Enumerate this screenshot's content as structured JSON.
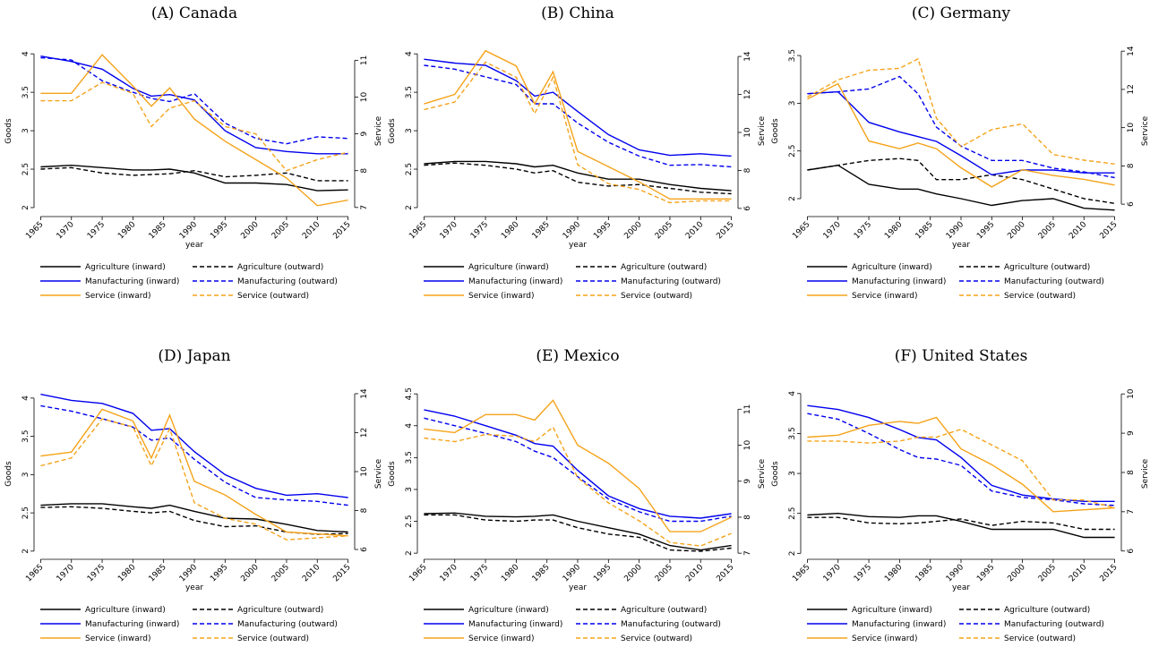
{
  "chart_data": [
    {
      "type": "line",
      "title": "(A) Canada",
      "xlabel": "year",
      "ylabel": "Goods",
      "y2label": "Service",
      "x": [
        1965,
        1970,
        1975,
        1980,
        1983,
        1986,
        1990,
        1995,
        2000,
        2005,
        2010,
        2015
      ],
      "xlim": [
        1964.5,
        2015.5
      ],
      "xticks": [
        1965,
        1970,
        1975,
        1980,
        1985,
        1990,
        1995,
        2000,
        2005,
        2010,
        2015
      ],
      "ylim": [
        1.93,
        4.06
      ],
      "yticks": [
        2,
        2.5,
        3,
        3.5,
        4
      ],
      "y2lim": [
        6.85,
        11.3
      ],
      "y2ticks": [
        7,
        8,
        9,
        10,
        11
      ],
      "series": [
        {
          "name": "Agriculture (inward)",
          "color": "#000000",
          "dash": false,
          "values": [
            2.53,
            2.55,
            2.52,
            2.49,
            2.49,
            2.5,
            2.45,
            2.32,
            2.32,
            2.3,
            2.22,
            2.23
          ]
        },
        {
          "name": "Agriculture (outward)",
          "color": "#000000",
          "dash": true,
          "values": [
            2.5,
            2.52,
            2.45,
            2.42,
            2.43,
            2.44,
            2.48,
            2.4,
            2.42,
            2.45,
            2.35,
            2.35
          ]
        },
        {
          "name": "Manufacturing (inward)",
          "color": "#0000ee",
          "dash": false,
          "values": [
            3.97,
            3.9,
            3.8,
            3.55,
            3.45,
            3.47,
            3.4,
            3.0,
            2.78,
            2.73,
            2.7,
            2.7
          ]
        },
        {
          "name": "Manufacturing (outward)",
          "color": "#0000ee",
          "dash": true,
          "values": [
            3.95,
            3.92,
            3.65,
            3.5,
            3.42,
            3.38,
            3.48,
            3.1,
            2.9,
            2.83,
            2.92,
            2.9
          ]
        },
        {
          "name": "Service (inward)",
          "color": "#f5a31a",
          "dash": false,
          "axis": "y2",
          "values": [
            10.1,
            10.1,
            11.15,
            10.3,
            9.75,
            10.25,
            9.4,
            8.8,
            8.3,
            7.8,
            7.05,
            7.2
          ]
        },
        {
          "name": "Service (outward)",
          "color": "#f5a31a",
          "dash": true,
          "axis": "y2",
          "values": [
            9.9,
            9.9,
            10.4,
            10.1,
            9.2,
            9.7,
            9.9,
            9.2,
            9.0,
            8.0,
            8.3,
            8.5
          ]
        }
      ]
    },
    {
      "type": "line",
      "title": "(B) China",
      "xlabel": "year",
      "ylabel": "Goods",
      "y2label": "Service",
      "x": [
        1965,
        1970,
        1975,
        1980,
        1983,
        1986,
        1990,
        1995,
        2000,
        2005,
        2010,
        2015
      ],
      "xlim": [
        1964.5,
        2015.5
      ],
      "xticks": [
        1965,
        1970,
        1975,
        1980,
        1985,
        1990,
        1995,
        2000,
        2005,
        2010,
        2015
      ],
      "ylim": [
        1.93,
        4.06
      ],
      "yticks": [
        2,
        2.5,
        3,
        3.5,
        4
      ],
      "y2lim": [
        5.76,
        14.38
      ],
      "y2ticks": [
        6,
        8,
        10,
        12,
        14
      ],
      "series": [
        {
          "name": "Agriculture (inward)",
          "color": "#000000",
          "dash": false,
          "values": [
            2.57,
            2.6,
            2.6,
            2.57,
            2.53,
            2.55,
            2.45,
            2.37,
            2.37,
            2.3,
            2.25,
            2.22
          ]
        },
        {
          "name": "Agriculture (outward)",
          "color": "#000000",
          "dash": true,
          "values": [
            2.55,
            2.58,
            2.55,
            2.5,
            2.45,
            2.48,
            2.33,
            2.28,
            2.3,
            2.25,
            2.2,
            2.18
          ]
        },
        {
          "name": "Manufacturing (inward)",
          "color": "#0000ee",
          "dash": false,
          "values": [
            3.93,
            3.88,
            3.85,
            3.65,
            3.45,
            3.5,
            3.25,
            2.95,
            2.75,
            2.68,
            2.7,
            2.67
          ]
        },
        {
          "name": "Manufacturing (outward)",
          "color": "#0000ee",
          "dash": true,
          "values": [
            3.85,
            3.8,
            3.7,
            3.6,
            3.35,
            3.35,
            3.1,
            2.85,
            2.67,
            2.55,
            2.56,
            2.53
          ]
        },
        {
          "name": "Service (inward)",
          "color": "#f5a31a",
          "dash": false,
          "axis": "y2",
          "values": [
            11.5,
            12,
            14.3,
            13.5,
            11.5,
            13.2,
            9,
            8.2,
            7.4,
            6.5,
            6.5,
            6.5
          ]
        },
        {
          "name": "Service (outward)",
          "color": "#f5a31a",
          "dash": true,
          "axis": "y2",
          "values": [
            11.2,
            11.6,
            13.7,
            12.9,
            11,
            12.9,
            8.3,
            7.3,
            7,
            6.3,
            6.4,
            6.4
          ]
        }
      ]
    },
    {
      "type": "line",
      "title": "(C) Germany",
      "xlabel": "year",
      "ylabel": "Goods",
      "y2label": "Service",
      "x": [
        1965,
        1970,
        1975,
        1980,
        1983,
        1986,
        1990,
        1995,
        2000,
        2005,
        2010,
        2015
      ],
      "xlim": [
        1964.5,
        2015.5
      ],
      "xticks": [
        1965,
        1970,
        1975,
        1980,
        1985,
        1990,
        1995,
        2000,
        2005,
        2010,
        2015
      ],
      "ylim": [
        1.85,
        3.566
      ],
      "yticks": [
        2,
        2.5,
        3,
        3.5
      ],
      "y2lim": [
        5.54,
        14.1
      ],
      "y2ticks": [
        6,
        8,
        10,
        12,
        14
      ],
      "series": [
        {
          "name": "Agriculture (inward)",
          "color": "#000000",
          "dash": false,
          "values": [
            2.3,
            2.35,
            2.15,
            2.1,
            2.1,
            2.05,
            2.0,
            1.93,
            1.98,
            2.0,
            1.9,
            1.88
          ]
        },
        {
          "name": "Agriculture (outward)",
          "color": "#000000",
          "dash": true,
          "values": [
            2.3,
            2.35,
            2.4,
            2.42,
            2.4,
            2.2,
            2.2,
            2.25,
            2.2,
            2.1,
            2.0,
            1.95
          ]
        },
        {
          "name": "Manufacturing (inward)",
          "color": "#0000ee",
          "dash": false,
          "values": [
            3.1,
            3.12,
            2.8,
            2.7,
            2.65,
            2.6,
            2.45,
            2.25,
            2.3,
            2.3,
            2.27,
            2.27
          ]
        },
        {
          "name": "Manufacturing (outward)",
          "color": "#0000ee",
          "dash": true,
          "values": [
            3.1,
            3.12,
            3.15,
            3.28,
            3.1,
            2.75,
            2.55,
            2.4,
            2.4,
            2.32,
            2.28,
            2.22
          ]
        },
        {
          "name": "Service (inward)",
          "color": "#f5a31a",
          "dash": false,
          "axis": "y2",
          "values": [
            11.5,
            12.3,
            9.3,
            8.9,
            9.2,
            8.9,
            7.9,
            6.9,
            7.8,
            7.5,
            7.3,
            7.0
          ]
        },
        {
          "name": "Service (outward)",
          "color": "#f5a31a",
          "dash": true,
          "axis": "y2",
          "values": [
            11.6,
            12.5,
            13,
            13.1,
            13.6,
            10.5,
            9,
            9.9,
            10.2,
            8.6,
            8.3,
            8.1
          ]
        }
      ]
    },
    {
      "type": "line",
      "title": "(D) Japan",
      "xlabel": "year",
      "ylabel": "Goods",
      "y2label": "Service",
      "x": [
        1965,
        1970,
        1975,
        1980,
        1983,
        1986,
        1990,
        1995,
        2000,
        2005,
        2010,
        2015
      ],
      "xlim": [
        1964.5,
        2015.5
      ],
      "xticks": [
        1965,
        1970,
        1975,
        1980,
        1985,
        1990,
        1995,
        2000,
        2005,
        2010,
        2015
      ],
      "ylim": [
        1.94,
        4.08
      ],
      "yticks": [
        2,
        2.5,
        3,
        3.5,
        4
      ],
      "y2lim": [
        5.68,
        14.09
      ],
      "y2ticks": [
        6,
        8,
        10,
        12,
        14
      ],
      "series": [
        {
          "name": "Agriculture (inward)",
          "color": "#000000",
          "dash": false,
          "values": [
            2.6,
            2.62,
            2.62,
            2.58,
            2.56,
            2.6,
            2.52,
            2.43,
            2.42,
            2.35,
            2.27,
            2.25
          ]
        },
        {
          "name": "Agriculture (outward)",
          "color": "#000000",
          "dash": true,
          "values": [
            2.57,
            2.58,
            2.56,
            2.52,
            2.5,
            2.52,
            2.4,
            2.32,
            2.33,
            2.25,
            2.22,
            2.23
          ]
        },
        {
          "name": "Manufacturing (inward)",
          "color": "#0000ee",
          "dash": false,
          "values": [
            4.05,
            3.97,
            3.93,
            3.8,
            3.58,
            3.6,
            3.3,
            3.0,
            2.82,
            2.73,
            2.75,
            2.7
          ]
        },
        {
          "name": "Manufacturing (outward)",
          "color": "#0000ee",
          "dash": true,
          "values": [
            3.9,
            3.83,
            3.73,
            3.62,
            3.45,
            3.48,
            3.2,
            2.9,
            2.7,
            2.67,
            2.65,
            2.6
          ]
        },
        {
          "name": "Service (inward)",
          "color": "#f5a31a",
          "dash": false,
          "axis": "y2",
          "values": [
            10.8,
            11,
            13.2,
            12.6,
            10.7,
            12.9,
            9.5,
            8.8,
            7.8,
            6.9,
            6.8,
            6.7
          ]
        },
        {
          "name": "Service (outward)",
          "color": "#f5a31a",
          "dash": true,
          "axis": "y2",
          "values": [
            10.3,
            10.7,
            12.7,
            12.3,
            10.3,
            12.2,
            8.4,
            7.6,
            7.3,
            6.5,
            6.6,
            6.7
          ]
        }
      ]
    },
    {
      "type": "line",
      "title": "(E) Mexico",
      "xlabel": "year",
      "ylabel": "Goods",
      "y2label": "Service",
      "x": [
        1965,
        1970,
        1975,
        1980,
        1983,
        1986,
        1990,
        1995,
        2000,
        2005,
        2010,
        2015
      ],
      "xlim": [
        1964.5,
        2015.5
      ],
      "xticks": [
        1965,
        1970,
        1975,
        1980,
        1985,
        1990,
        1995,
        2000,
        2005,
        2010,
        2015
      ],
      "ylim": [
        1.96,
        4.53
      ],
      "yticks": [
        2,
        2.5,
        3,
        3.5,
        4,
        4.5
      ],
      "y2lim": [
        6.93,
        11.48
      ],
      "y2ticks": [
        7,
        8,
        9,
        10,
        11
      ],
      "series": [
        {
          "name": "Agriculture (inward)",
          "color": "#000000",
          "dash": false,
          "values": [
            2.62,
            2.63,
            2.58,
            2.57,
            2.58,
            2.6,
            2.5,
            2.4,
            2.3,
            2.12,
            2.05,
            2.12
          ]
        },
        {
          "name": "Agriculture (outward)",
          "color": "#000000",
          "dash": true,
          "values": [
            2.6,
            2.6,
            2.52,
            2.5,
            2.52,
            2.52,
            2.4,
            2.3,
            2.25,
            2.05,
            2.03,
            2.08
          ]
        },
        {
          "name": "Manufacturing (inward)",
          "color": "#0000ee",
          "dash": false,
          "values": [
            4.25,
            4.15,
            4.0,
            3.85,
            3.72,
            3.68,
            3.3,
            2.9,
            2.7,
            2.58,
            2.55,
            2.62
          ]
        },
        {
          "name": "Manufacturing (outward)",
          "color": "#0000ee",
          "dash": true,
          "values": [
            4.12,
            4.0,
            3.88,
            3.75,
            3.6,
            3.5,
            3.2,
            2.85,
            2.65,
            2.5,
            2.5,
            2.58
          ]
        },
        {
          "name": "Service (inward)",
          "color": "#f5a31a",
          "dash": false,
          "axis": "y2",
          "values": [
            10.45,
            10.35,
            10.85,
            10.85,
            10.7,
            11.25,
            10.0,
            9.5,
            8.8,
            7.6,
            7.6,
            8.0
          ]
        },
        {
          "name": "Service (outward)",
          "color": "#f5a31a",
          "dash": true,
          "axis": "y2",
          "values": [
            10.2,
            10.1,
            10.3,
            10.25,
            10.1,
            10.5,
            9.1,
            8.4,
            7.9,
            7.3,
            7.2,
            7.55
          ]
        }
      ]
    },
    {
      "type": "line",
      "title": "(F) United States",
      "xlabel": "year",
      "ylabel": "Goods",
      "y2label": "Service",
      "x": [
        1965,
        1970,
        1975,
        1980,
        1983,
        1986,
        1990,
        1995,
        2000,
        2005,
        2010,
        2015
      ],
      "xlim": [
        1964.5,
        2015.5
      ],
      "xticks": [
        1965,
        1970,
        1975,
        1980,
        1985,
        1990,
        1995,
        2000,
        2005,
        2010,
        2015
      ],
      "ylim": [
        1.97,
        4.02
      ],
      "yticks": [
        2,
        2.5,
        3,
        3.5,
        4
      ],
      "y2lim": [
        5.88,
        10.05
      ],
      "y2ticks": [
        6,
        7,
        8,
        9,
        10
      ],
      "series": [
        {
          "name": "Agriculture (inward)",
          "color": "#000000",
          "dash": false,
          "values": [
            2.48,
            2.5,
            2.46,
            2.45,
            2.47,
            2.47,
            2.4,
            2.3,
            2.3,
            2.3,
            2.2,
            2.2
          ]
        },
        {
          "name": "Agriculture (outward)",
          "color": "#000000",
          "dash": true,
          "values": [
            2.45,
            2.45,
            2.38,
            2.37,
            2.38,
            2.4,
            2.43,
            2.35,
            2.4,
            2.38,
            2.3,
            2.3
          ]
        },
        {
          "name": "Manufacturing (inward)",
          "color": "#0000ee",
          "dash": false,
          "values": [
            3.85,
            3.8,
            3.7,
            3.55,
            3.45,
            3.42,
            3.2,
            2.85,
            2.73,
            2.68,
            2.65,
            2.65
          ]
        },
        {
          "name": "Manufacturing (outward)",
          "color": "#0000ee",
          "dash": true,
          "values": [
            3.75,
            3.68,
            3.5,
            3.3,
            3.2,
            3.18,
            3.1,
            2.78,
            2.7,
            2.67,
            2.62,
            2.6
          ]
        },
        {
          "name": "Service (inward)",
          "color": "#f5a31a",
          "dash": false,
          "axis": "y2",
          "values": [
            8.9,
            8.95,
            9.2,
            9.3,
            9.25,
            9.4,
            8.6,
            8.2,
            7.7,
            7.0,
            7.05,
            7.1
          ]
        },
        {
          "name": "Service (outward)",
          "color": "#f5a31a",
          "dash": true,
          "axis": "y2",
          "values": [
            8.8,
            8.8,
            8.75,
            8.8,
            8.9,
            8.9,
            9.1,
            8.7,
            8.3,
            7.3,
            7.3,
            7.1
          ]
        }
      ]
    }
  ]
}
